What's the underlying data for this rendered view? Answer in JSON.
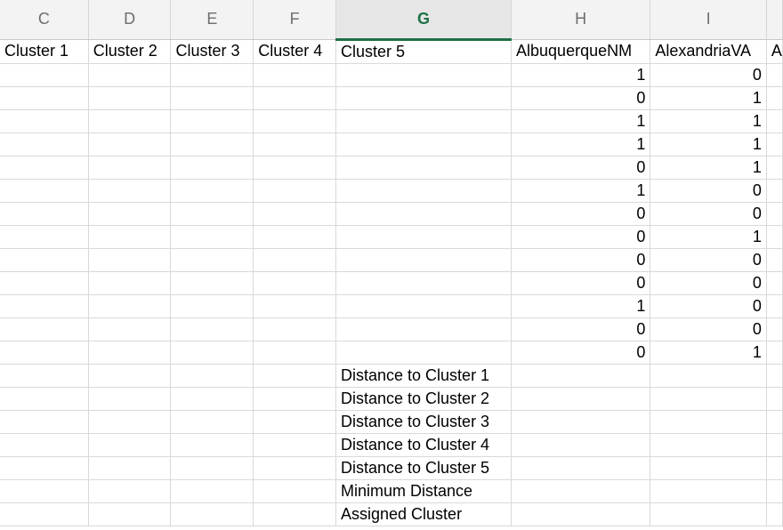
{
  "columns": [
    {
      "letter": "C",
      "header": "Cluster 1"
    },
    {
      "letter": "D",
      "header": "Cluster 2"
    },
    {
      "letter": "E",
      "header": "Cluster 3"
    },
    {
      "letter": "F",
      "header": "Cluster 4"
    },
    {
      "letter": "G",
      "header": "Cluster 5"
    },
    {
      "letter": "H",
      "header": "AlbuquerqueNM"
    },
    {
      "letter": "I",
      "header": "AlexandriaVA"
    },
    {
      "letter": "",
      "header": "A"
    }
  ],
  "selected_column": "G",
  "accent_color": "#1e7145",
  "data_rows": [
    {
      "H": "1",
      "I": "0"
    },
    {
      "H": "0",
      "I": "1"
    },
    {
      "H": "1",
      "I": "1"
    },
    {
      "H": "1",
      "I": "1"
    },
    {
      "H": "0",
      "I": "1"
    },
    {
      "H": "1",
      "I": "0"
    },
    {
      "H": "0",
      "I": "0"
    },
    {
      "H": "0",
      "I": "1"
    },
    {
      "H": "0",
      "I": "0"
    },
    {
      "H": "0",
      "I": "0"
    },
    {
      "H": "1",
      "I": "0"
    },
    {
      "H": "0",
      "I": "0"
    },
    {
      "H": "0",
      "I": "1"
    }
  ],
  "summary_labels": [
    "Distance to Cluster 1",
    "Distance to Cluster 2",
    "Distance to Cluster 3",
    "Distance to Cluster 4",
    "Distance to Cluster 5",
    "Minimum Distance",
    "Assigned Cluster"
  ]
}
